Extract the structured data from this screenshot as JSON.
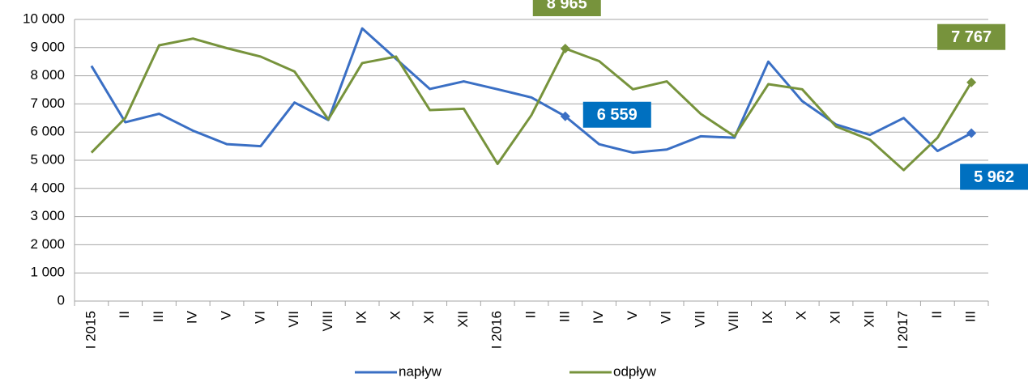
{
  "chart_data": {
    "type": "line",
    "categories": [
      "I 2015",
      "II",
      "III",
      "IV",
      "V",
      "VI",
      "VII",
      "VIII",
      "IX",
      "X",
      "XI",
      "XII",
      "I 2016",
      "II",
      "III",
      "IV",
      "V",
      "VI",
      "VII",
      "VIII",
      "IX",
      "X",
      "XI",
      "XII",
      "I 2017",
      "II",
      "III"
    ],
    "series": [
      {
        "name": "napływ",
        "color": "#3a6fc4",
        "label_color": "#0070c0",
        "values": [
          8350,
          6350,
          6650,
          6050,
          5570,
          5500,
          7050,
          6430,
          9680,
          8600,
          7530,
          7800,
          7520,
          7230,
          6559,
          5570,
          5270,
          5380,
          5850,
          5800,
          8500,
          7100,
          6270,
          5900,
          6500,
          5330,
          5962
        ],
        "value_labels": [
          null,
          null,
          null,
          null,
          null,
          null,
          null,
          null,
          null,
          null,
          null,
          null,
          null,
          null,
          "6 559",
          null,
          null,
          null,
          null,
          null,
          null,
          null,
          null,
          null,
          null,
          null,
          "5 962"
        ]
      },
      {
        "name": "odpływ",
        "color": "#77933c",
        "label_color": "#77933c",
        "values": [
          5270,
          6500,
          9080,
          9320,
          8980,
          8680,
          8150,
          6450,
          8450,
          8680,
          6780,
          6830,
          4870,
          6600,
          8965,
          8520,
          7520,
          7800,
          6650,
          5850,
          7700,
          7520,
          6200,
          5730,
          4650,
          5800,
          7767
        ],
        "value_labels": [
          null,
          null,
          null,
          null,
          null,
          null,
          null,
          null,
          null,
          null,
          null,
          null,
          null,
          null,
          "8 965",
          null,
          null,
          null,
          null,
          null,
          null,
          null,
          null,
          null,
          null,
          null,
          "7 767"
        ]
      }
    ],
    "ylim": [
      0,
      10000
    ],
    "yticks": [
      0,
      {
        "value": 1000,
        "label": "1 000"
      },
      {
        "value": 2000,
        "label": "2 000"
      },
      {
        "value": 3000,
        "label": "3 000"
      },
      {
        "value": 4000,
        "label": "4 000"
      },
      {
        "value": 5000,
        "label": "5 000"
      },
      {
        "value": 6000,
        "label": "6 000"
      },
      {
        "value": 7000,
        "label": "7 000"
      },
      {
        "value": 8000,
        "label": "8 000"
      },
      {
        "value": 9000,
        "label": "9 000"
      },
      {
        "value": 10000,
        "label": "10 000"
      }
    ],
    "grid": true,
    "legend": "bottom"
  }
}
